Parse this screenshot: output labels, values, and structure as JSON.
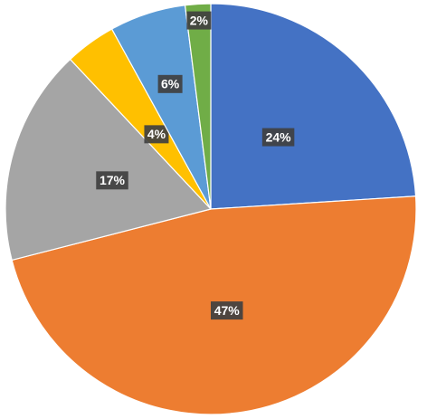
{
  "chart_data": {
    "type": "pie",
    "slices": [
      {
        "label": "24%",
        "value": 24,
        "color": "#4472C4"
      },
      {
        "label": "47%",
        "value": 47,
        "color": "#ED7D31"
      },
      {
        "label": "17%",
        "value": 17,
        "color": "#A5A5A5"
      },
      {
        "label": "4%",
        "value": 4,
        "color": "#FFC000"
      },
      {
        "label": "6%",
        "value": 6,
        "color": "#5B9BD5"
      },
      {
        "label": "2%",
        "value": 2,
        "color": "#70AD47"
      }
    ],
    "start_angle": "12 o'clock",
    "direction": "clockwise",
    "legend": "none",
    "data_labels": "inside"
  }
}
